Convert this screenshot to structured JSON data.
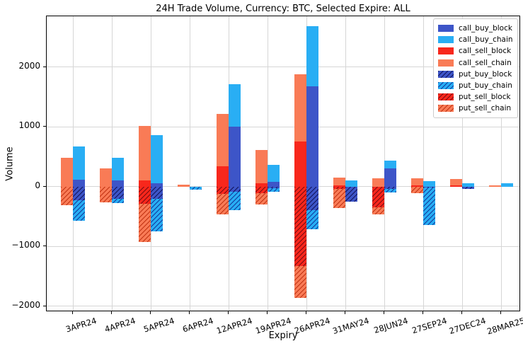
{
  "chart_data": {
    "type": "bar",
    "stacked": true,
    "grouping": "two stacked bars per category: left=sell series, right=buy series; calls positive, puts negative (hatched)",
    "title": "24H Trade Volume, Currency: BTC, Selected Expire: ALL",
    "xlabel": "Expiry",
    "ylabel": "Volume",
    "ylim": [
      -2100,
      2850
    ],
    "yticks": [
      -2000,
      -1000,
      0,
      1000,
      2000
    ],
    "grid": true,
    "legend_position": "upper right",
    "categories": [
      "3APR24",
      "4APR24",
      "5APR24",
      "6APR24",
      "12APR24",
      "19APR24",
      "26APR24",
      "31MAY24",
      "28JUN24",
      "27SEP24",
      "27DEC24",
      "28MAR25"
    ],
    "series": [
      {
        "name": "call_buy_block",
        "bar": "buy",
        "hatch": false,
        "color": "#3D55C8",
        "hatch_color": "#161a7e",
        "values": [
          110,
          100,
          50,
          0,
          1000,
          75,
          1680,
          0,
          300,
          0,
          0,
          0
        ]
      },
      {
        "name": "call_buy_chain",
        "bar": "buy",
        "hatch": false,
        "color": "#29AEF4",
        "hatch_color": "#14308f",
        "values": [
          560,
          380,
          810,
          0,
          710,
          290,
          1000,
          100,
          130,
          95,
          50,
          55
        ]
      },
      {
        "name": "call_sell_block",
        "bar": "sell",
        "hatch": false,
        "color": "#F8271C",
        "hatch_color": "#8f0f0b",
        "values": [
          0,
          0,
          100,
          0,
          340,
          50,
          750,
          25,
          0,
          25,
          20,
          0
        ]
      },
      {
        "name": "call_sell_chain",
        "bar": "sell",
        "hatch": false,
        "color": "#F97B56",
        "hatch_color": "#c63a17",
        "values": [
          480,
          300,
          910,
          30,
          870,
          560,
          1130,
          120,
          140,
          110,
          105,
          20
        ]
      },
      {
        "name": "put_buy_block",
        "bar": "buy",
        "hatch": true,
        "color": "#3D55C8",
        "hatch_color": "#12155c",
        "values": [
          -230,
          -200,
          -200,
          0,
          -90,
          -30,
          -390,
          -250,
          -40,
          -20,
          -40,
          0
        ]
      },
      {
        "name": "put_buy_chain",
        "bar": "buy",
        "hatch": true,
        "color": "#29AEF4",
        "hatch_color": "#123a9e",
        "values": [
          -345,
          -80,
          -550,
          -50,
          -300,
          -55,
          -320,
          0,
          -55,
          -620,
          0,
          0
        ]
      },
      {
        "name": "put_sell_block",
        "bar": "sell",
        "hatch": true,
        "color": "#F8271C",
        "hatch_color": "#7a0c10",
        "values": [
          0,
          0,
          -290,
          0,
          -120,
          -115,
          -1330,
          -40,
          -350,
          0,
          0,
          0
        ]
      },
      {
        "name": "put_sell_chain",
        "bar": "sell",
        "hatch": true,
        "color": "#F97B56",
        "hatch_color": "#c13414",
        "values": [
          -310,
          -260,
          -640,
          0,
          -340,
          -185,
          -530,
          -325,
          -110,
          -115,
          0,
          0
        ]
      }
    ]
  }
}
